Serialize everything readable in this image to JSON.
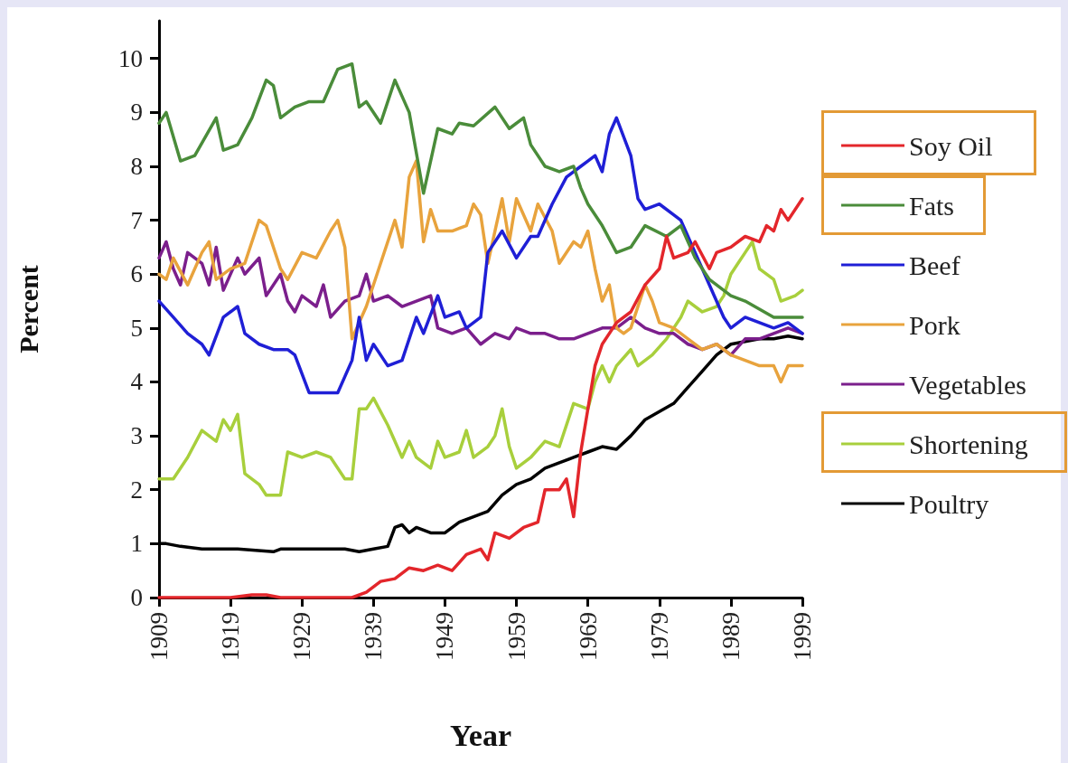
{
  "chart_data": {
    "type": "line",
    "xlabel": "Year",
    "ylabel": "Percent",
    "xlim": [
      1909,
      1999
    ],
    "xticks": [
      1909,
      1919,
      1929,
      1939,
      1949,
      1959,
      1969,
      1979,
      1989,
      1999
    ],
    "ylim": [
      0,
      10.7
    ],
    "yticks": [
      0,
      1,
      2,
      3,
      4,
      5,
      6,
      7,
      8,
      9,
      10
    ],
    "grid": false,
    "legend": "right",
    "marker": "none",
    "line_style": "solid",
    "series": [
      {
        "name": "Soy Oil",
        "color": "#e3262b",
        "x": [
          1909,
          1919,
          1922,
          1924,
          1926,
          1936,
          1938,
          1940,
          1942,
          1944,
          1946,
          1948,
          1950,
          1952,
          1954,
          1955,
          1956,
          1958,
          1960,
          1962,
          1963,
          1965,
          1966,
          1967,
          1968,
          1969,
          1970,
          1971,
          1973,
          1975,
          1977,
          1979,
          1980,
          1981,
          1983,
          1984,
          1986,
          1987,
          1989,
          1991,
          1993,
          1994,
          1995,
          1996,
          1997,
          1999
        ],
        "values": [
          0,
          0,
          0.05,
          0.05,
          0,
          0,
          0.1,
          0.3,
          0.35,
          0.55,
          0.5,
          0.6,
          0.5,
          0.8,
          0.9,
          0.7,
          1.2,
          1.1,
          1.3,
          1.4,
          2.0,
          2.0,
          2.2,
          1.5,
          2.7,
          3.5,
          4.3,
          4.7,
          5.1,
          5.3,
          5.8,
          6.1,
          6.7,
          6.3,
          6.4,
          6.6,
          6.1,
          6.4,
          6.5,
          6.7,
          6.6,
          6.9,
          6.8,
          7.2,
          7.0,
          7.4
        ]
      },
      {
        "name": "Fats",
        "color": "#4a8c3a",
        "x": [
          1909,
          1910,
          1912,
          1914,
          1917,
          1918,
          1920,
          1922,
          1924,
          1925,
          1926,
          1928,
          1930,
          1932,
          1933,
          1934,
          1936,
          1937,
          1938,
          1940,
          1942,
          1944,
          1946,
          1948,
          1950,
          1951,
          1953,
          1956,
          1958,
          1960,
          1961,
          1963,
          1965,
          1967,
          1968,
          1969,
          1971,
          1973,
          1975,
          1977,
          1980,
          1982,
          1984,
          1986,
          1989,
          1991,
          1995,
          1996,
          1999
        ],
        "values": [
          8.8,
          9.0,
          8.1,
          8.2,
          8.9,
          8.3,
          8.4,
          8.9,
          9.6,
          9.5,
          8.9,
          9.1,
          9.2,
          9.2,
          9.5,
          9.8,
          9.9,
          9.1,
          9.2,
          8.8,
          9.6,
          9.0,
          7.5,
          8.7,
          8.6,
          8.8,
          8.75,
          9.1,
          8.7,
          8.9,
          8.4,
          8.0,
          7.9,
          8.0,
          7.6,
          7.3,
          6.9,
          6.4,
          6.5,
          6.9,
          6.7,
          6.9,
          6.3,
          5.9,
          5.6,
          5.5,
          5.2,
          5.2,
          5.2
        ]
      },
      {
        "name": "Beef",
        "color": "#1f1fd6",
        "x": [
          1909,
          1911,
          1913,
          1915,
          1916,
          1918,
          1920,
          1921,
          1923,
          1925,
          1927,
          1928,
          1930,
          1931,
          1933,
          1934,
          1936,
          1937,
          1938,
          1939,
          1941,
          1943,
          1945,
          1946,
          1948,
          1949,
          1951,
          1952,
          1954,
          1955,
          1957,
          1959,
          1961,
          1962,
          1964,
          1966,
          1968,
          1969,
          1970,
          1971,
          1972,
          1973,
          1975,
          1976,
          1977,
          1979,
          1981,
          1982,
          1984,
          1986,
          1988,
          1989,
          1991,
          1993,
          1995,
          1997,
          1999
        ],
        "values": [
          5.5,
          5.2,
          4.9,
          4.7,
          4.5,
          5.2,
          5.4,
          4.9,
          4.7,
          4.6,
          4.6,
          4.5,
          3.8,
          3.8,
          3.8,
          3.8,
          4.4,
          5.2,
          4.4,
          4.7,
          4.3,
          4.4,
          5.2,
          4.9,
          5.6,
          5.2,
          5.3,
          5.0,
          5.2,
          6.4,
          6.8,
          6.3,
          6.7,
          6.7,
          7.3,
          7.8,
          8.0,
          8.1,
          8.2,
          7.9,
          8.6,
          8.9,
          8.2,
          7.4,
          7.2,
          7.3,
          7.1,
          7.0,
          6.4,
          5.8,
          5.2,
          5.0,
          5.2,
          5.1,
          5.0,
          5.1,
          4.9
        ]
      },
      {
        "name": "Pork",
        "color": "#e8a33d",
        "x": [
          1909,
          1910,
          1911,
          1913,
          1915,
          1916,
          1917,
          1919,
          1921,
          1923,
          1924,
          1926,
          1927,
          1929,
          1931,
          1933,
          1934,
          1935,
          1936,
          1938,
          1940,
          1942,
          1943,
          1944,
          1945,
          1946,
          1947,
          1948,
          1950,
          1952,
          1953,
          1954,
          1955,
          1957,
          1958,
          1959,
          1961,
          1962,
          1964,
          1965,
          1967,
          1968,
          1969,
          1970,
          1971,
          1972,
          1973,
          1974,
          1975,
          1977,
          1978,
          1979,
          1981,
          1983,
          1985,
          1987,
          1989,
          1991,
          1993,
          1995,
          1996,
          1997,
          1999
        ],
        "values": [
          6.0,
          5.9,
          6.3,
          5.8,
          6.4,
          6.6,
          5.9,
          6.1,
          6.2,
          7.0,
          6.9,
          6.1,
          5.9,
          6.4,
          6.3,
          6.8,
          7.0,
          6.5,
          4.8,
          5.4,
          6.2,
          7.0,
          6.5,
          7.8,
          8.1,
          6.6,
          7.2,
          6.8,
          6.8,
          6.9,
          7.3,
          7.1,
          6.2,
          7.4,
          6.6,
          7.4,
          6.8,
          7.3,
          6.8,
          6.2,
          6.6,
          6.5,
          6.8,
          6.1,
          5.5,
          5.8,
          5.0,
          4.9,
          5.0,
          5.8,
          5.5,
          5.1,
          5.0,
          4.8,
          4.6,
          4.7,
          4.5,
          4.4,
          4.3,
          4.3,
          4.0,
          4.3,
          4.3
        ]
      },
      {
        "name": "Vegetables",
        "color": "#7b1f8c",
        "x": [
          1909,
          1910,
          1911,
          1912,
          1913,
          1915,
          1916,
          1917,
          1918,
          1920,
          1921,
          1923,
          1924,
          1926,
          1927,
          1928,
          1929,
          1931,
          1932,
          1933,
          1935,
          1937,
          1938,
          1939,
          1941,
          1943,
          1945,
          1947,
          1948,
          1950,
          1952,
          1954,
          1956,
          1958,
          1959,
          1961,
          1963,
          1965,
          1967,
          1969,
          1971,
          1973,
          1975,
          1977,
          1979,
          1981,
          1983,
          1985,
          1987,
          1989,
          1991,
          1993,
          1995,
          1997,
          1999
        ],
        "values": [
          6.3,
          6.6,
          6.1,
          5.8,
          6.4,
          6.2,
          5.8,
          6.5,
          5.7,
          6.3,
          6.0,
          6.3,
          5.6,
          6.0,
          5.5,
          5.3,
          5.6,
          5.4,
          5.8,
          5.2,
          5.5,
          5.6,
          6.0,
          5.5,
          5.6,
          5.4,
          5.5,
          5.6,
          5.0,
          4.9,
          5.0,
          4.7,
          4.9,
          4.8,
          5.0,
          4.9,
          4.9,
          4.8,
          4.8,
          4.9,
          5.0,
          5.0,
          5.2,
          5.0,
          4.9,
          4.9,
          4.7,
          4.6,
          4.7,
          4.5,
          4.8,
          4.8,
          4.9,
          5.0,
          4.9
        ]
      },
      {
        "name": "Shortening",
        "color": "#a8cf3c",
        "x": [
          1909,
          1911,
          1913,
          1915,
          1917,
          1918,
          1919,
          1920,
          1921,
          1923,
          1924,
          1926,
          1927,
          1929,
          1931,
          1933,
          1935,
          1936,
          1937,
          1938,
          1939,
          1941,
          1943,
          1944,
          1945,
          1947,
          1948,
          1949,
          1951,
          1952,
          1953,
          1955,
          1956,
          1957,
          1958,
          1959,
          1961,
          1963,
          1965,
          1967,
          1969,
          1970,
          1971,
          1972,
          1973,
          1975,
          1976,
          1978,
          1980,
          1981,
          1982,
          1983,
          1985,
          1987,
          1988,
          1989,
          1990,
          1991,
          1992,
          1993,
          1995,
          1996,
          1998,
          1999
        ],
        "values": [
          2.2,
          2.2,
          2.6,
          3.1,
          2.9,
          3.3,
          3.1,
          3.4,
          2.3,
          2.1,
          1.9,
          1.9,
          2.7,
          2.6,
          2.7,
          2.6,
          2.2,
          2.2,
          3.5,
          3.5,
          3.7,
          3.2,
          2.6,
          2.9,
          2.6,
          2.4,
          2.9,
          2.6,
          2.7,
          3.1,
          2.6,
          2.8,
          3.0,
          3.5,
          2.8,
          2.4,
          2.6,
          2.9,
          2.8,
          3.6,
          3.5,
          4.0,
          4.3,
          4.0,
          4.3,
          4.6,
          4.3,
          4.5,
          4.8,
          5.0,
          5.2,
          5.5,
          5.3,
          5.4,
          5.6,
          6.0,
          6.2,
          6.4,
          6.6,
          6.1,
          5.9,
          5.5,
          5.6,
          5.7
        ]
      },
      {
        "name": "Poultry",
        "color": "#000000",
        "x": [
          1909,
          1910,
          1912,
          1915,
          1920,
          1925,
          1926,
          1930,
          1935,
          1937,
          1939,
          1941,
          1942,
          1943,
          1944,
          1945,
          1947,
          1949,
          1951,
          1953,
          1955,
          1957,
          1959,
          1961,
          1963,
          1965,
          1967,
          1969,
          1971,
          1973,
          1975,
          1977,
          1979,
          1981,
          1983,
          1985,
          1987,
          1989,
          1991,
          1993,
          1995,
          1997,
          1999
        ],
        "values": [
          1.0,
          1.0,
          0.95,
          0.9,
          0.9,
          0.85,
          0.9,
          0.9,
          0.9,
          0.85,
          0.9,
          0.95,
          1.3,
          1.35,
          1.2,
          1.3,
          1.2,
          1.2,
          1.4,
          1.5,
          1.6,
          1.9,
          2.1,
          2.2,
          2.4,
          2.5,
          2.6,
          2.7,
          2.8,
          2.75,
          3.0,
          3.3,
          3.45,
          3.6,
          3.9,
          4.2,
          4.5,
          4.7,
          4.75,
          4.8,
          4.8,
          4.85,
          4.8
        ]
      }
    ]
  }
}
